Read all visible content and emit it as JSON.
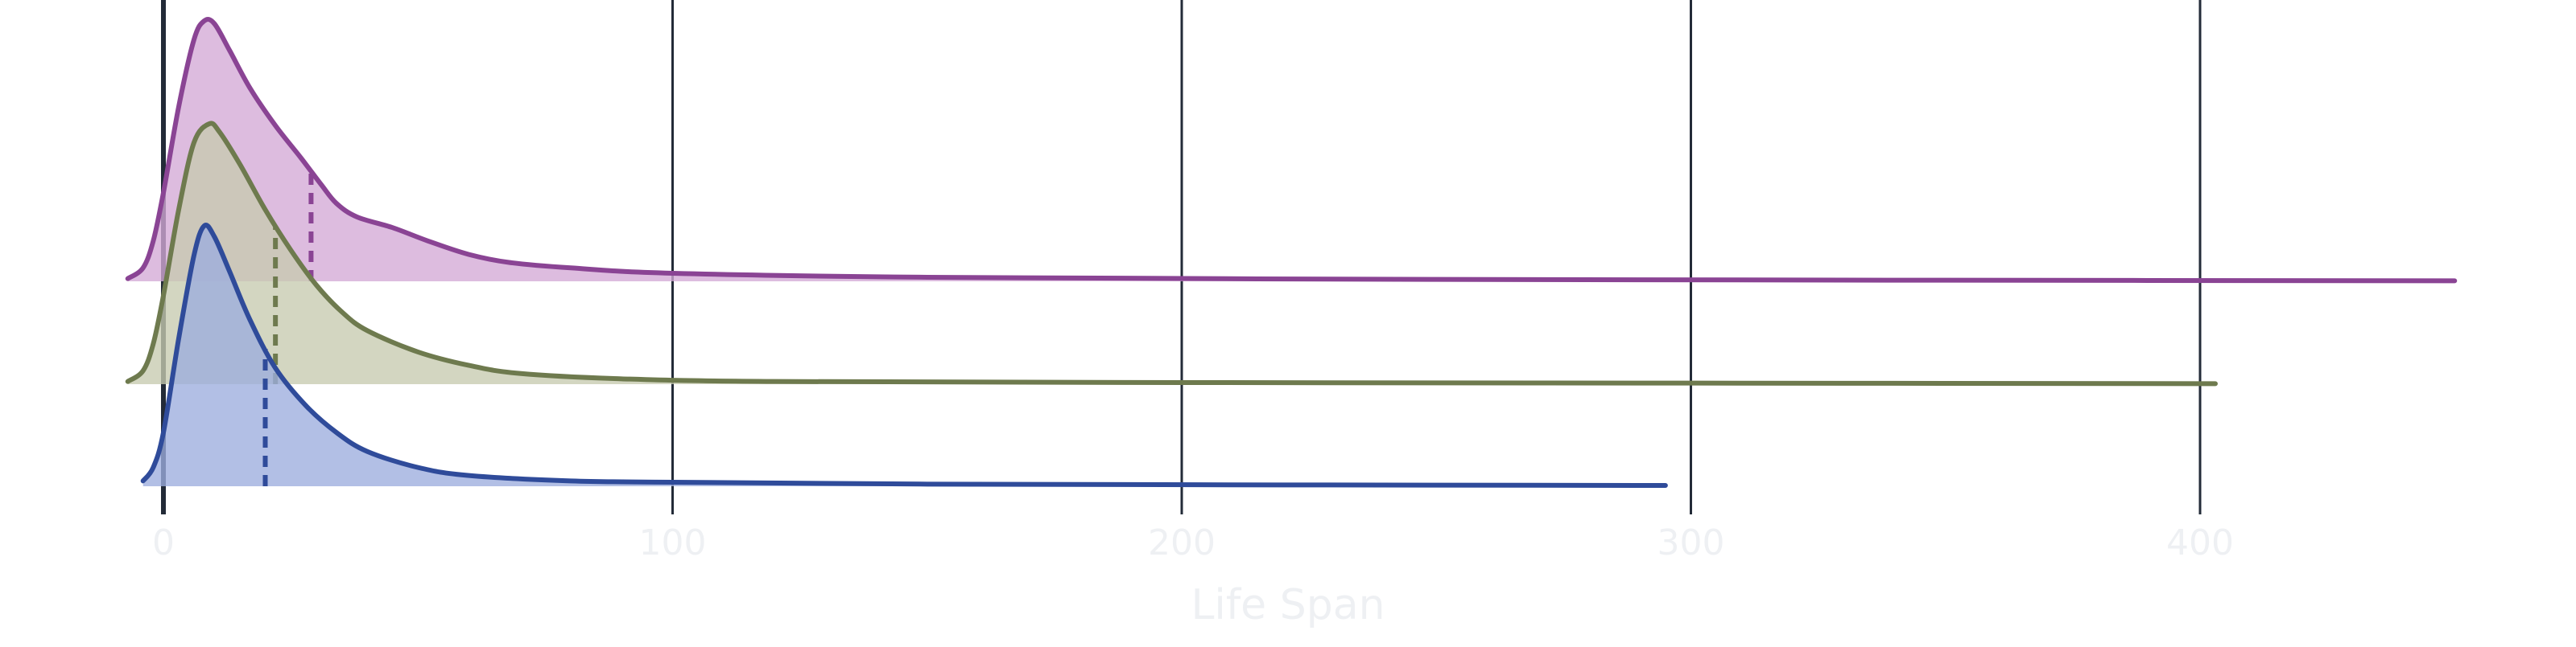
{
  "chart_data": {
    "type": "ridgeline",
    "xlabel": "Life Span",
    "xlim": [
      -32,
      475
    ],
    "x_ticks": [
      0,
      100,
      200,
      300,
      400
    ],
    "x_tick_labels": [
      "0",
      "100",
      "200",
      "300",
      "400"
    ],
    "grid": "vertical",
    "legend": "none",
    "series": [
      {
        "color": "#8a4494",
        "fill": "#d4a9d6",
        "x_min": -7,
        "x_max": 450,
        "peak_x": 8,
        "median_x": 29,
        "density": [
          [
            -7,
            0.01
          ],
          [
            -4,
            0.05
          ],
          [
            -2,
            0.15
          ],
          [
            0,
            0.33
          ],
          [
            3,
            0.65
          ],
          [
            6,
            0.9
          ],
          [
            8,
            0.97
          ],
          [
            10,
            0.96
          ],
          [
            13,
            0.86
          ],
          [
            17,
            0.72
          ],
          [
            22,
            0.58
          ],
          [
            27,
            0.46
          ],
          [
            31,
            0.36
          ],
          [
            34,
            0.29
          ],
          [
            38,
            0.24
          ],
          [
            45,
            0.2
          ],
          [
            52,
            0.15
          ],
          [
            60,
            0.1
          ],
          [
            68,
            0.07
          ],
          [
            80,
            0.05
          ],
          [
            100,
            0.03
          ],
          [
            150,
            0.015
          ],
          [
            250,
            0.007
          ],
          [
            350,
            0.004
          ],
          [
            450,
            0.002
          ]
        ]
      },
      {
        "color": "#6e7a4e",
        "fill": "#c7cbb0",
        "x_min": -7,
        "x_max": 403,
        "peak_x": 9,
        "median_x": 22,
        "density": [
          [
            -7,
            0.01
          ],
          [
            -4,
            0.05
          ],
          [
            -2,
            0.15
          ],
          [
            0,
            0.33
          ],
          [
            3,
            0.65
          ],
          [
            6,
            0.9
          ],
          [
            9,
            0.97
          ],
          [
            11,
            0.94
          ],
          [
            15,
            0.82
          ],
          [
            20,
            0.65
          ],
          [
            25,
            0.5
          ],
          [
            30,
            0.37
          ],
          [
            35,
            0.27
          ],
          [
            40,
            0.2
          ],
          [
            50,
            0.12
          ],
          [
            60,
            0.07
          ],
          [
            70,
            0.04
          ],
          [
            90,
            0.02
          ],
          [
            120,
            0.01
          ],
          [
            200,
            0.006
          ],
          [
            300,
            0.004
          ],
          [
            403,
            0.002
          ]
        ]
      },
      {
        "color": "#2f4b9a",
        "fill": "#9cadde",
        "x_min": -4,
        "x_max": 295,
        "peak_x": 8,
        "median_x": 20,
        "density": [
          [
            -4,
            0.02
          ],
          [
            -2,
            0.07
          ],
          [
            0,
            0.2
          ],
          [
            3,
            0.55
          ],
          [
            6,
            0.86
          ],
          [
            8,
            0.97
          ],
          [
            10,
            0.93
          ],
          [
            13,
            0.8
          ],
          [
            17,
            0.62
          ],
          [
            22,
            0.44
          ],
          [
            28,
            0.3
          ],
          [
            34,
            0.2
          ],
          [
            40,
            0.13
          ],
          [
            50,
            0.07
          ],
          [
            60,
            0.04
          ],
          [
            80,
            0.02
          ],
          [
            100,
            0.015
          ],
          [
            150,
            0.008
          ],
          [
            220,
            0.005
          ],
          [
            295,
            0.003
          ]
        ]
      }
    ]
  }
}
